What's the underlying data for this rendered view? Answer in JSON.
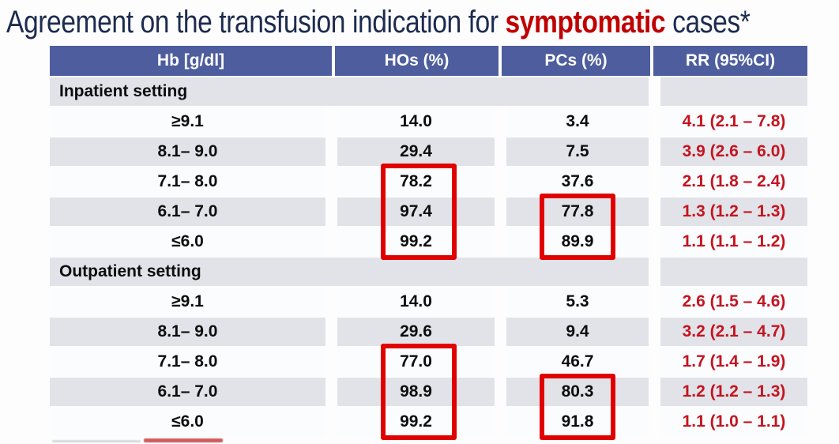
{
  "title": {
    "prefix": "Agreement on the transfusion indication for ",
    "highlight": "symptomatic",
    "suffix": " cases*"
  },
  "table": {
    "columns": [
      "Hb [g/dl]",
      "HOs (%)",
      "PCs (%)",
      "RR (95%CI)"
    ],
    "sections": [
      {
        "label": "Inpatient setting",
        "rows": [
          {
            "hb": "≥9.1",
            "hos": "14.0",
            "pcs": "3.4",
            "rr": "4.1 (2.1 – 7.8)",
            "hos_boxed": false,
            "pcs_boxed": false
          },
          {
            "hb": "8.1– 9.0",
            "hos": "29.4",
            "pcs": "7.5",
            "rr": "3.9 (2.6 – 6.0)",
            "hos_boxed": false,
            "pcs_boxed": false
          },
          {
            "hb": "7.1– 8.0",
            "hos": "78.2",
            "pcs": "37.6",
            "rr": "2.1 (1.8 – 2.4)",
            "hos_boxed": true,
            "pcs_boxed": false
          },
          {
            "hb": "6.1– 7.0",
            "hos": "97.4",
            "pcs": "77.8",
            "rr": "1.3 (1.2 – 1.3)",
            "hos_boxed": true,
            "pcs_boxed": true
          },
          {
            "hb": "≤6.0",
            "hos": "99.2",
            "pcs": "89.9",
            "rr": "1.1 (1.1 – 1.2)",
            "hos_boxed": true,
            "pcs_boxed": true
          }
        ]
      },
      {
        "label": "Outpatient setting",
        "rows": [
          {
            "hb": "≥9.1",
            "hos": "14.0",
            "pcs": "5.3",
            "rr": "2.6 (1.5 – 4.6)",
            "hos_boxed": false,
            "pcs_boxed": false
          },
          {
            "hb": "8.1– 9.0",
            "hos": "29.6",
            "pcs": "9.4",
            "rr": "3.2 (2.1 – 4.7)",
            "hos_boxed": false,
            "pcs_boxed": false
          },
          {
            "hb": "7.1– 8.0",
            "hos": "77.0",
            "pcs": "46.7",
            "rr": "1.7 (1.4 – 1.9)",
            "hos_boxed": true,
            "pcs_boxed": false
          },
          {
            "hb": "6.1– 7.0",
            "hos": "98.9",
            "pcs": "80.3",
            "rr": "1.2 (1.2 – 1.3)",
            "hos_boxed": true,
            "pcs_boxed": true
          },
          {
            "hb": "≤6.0",
            "hos": "99.2",
            "pcs": "91.8",
            "rr": "1.1 (1.0 – 1.1)",
            "hos_boxed": true,
            "pcs_boxed": true
          }
        ]
      }
    ]
  },
  "highlight_boxes": [
    {
      "section": "Inpatient setting",
      "column": "HOs (%)",
      "rows": [
        "7.1– 8.0",
        "6.1– 7.0",
        "≤6.0"
      ]
    },
    {
      "section": "Inpatient setting",
      "column": "PCs (%)",
      "rows": [
        "6.1– 7.0",
        "≤6.0"
      ]
    },
    {
      "section": "Outpatient setting",
      "column": "HOs (%)",
      "rows": [
        "7.1– 8.0",
        "6.1– 7.0",
        "≤6.0"
      ]
    },
    {
      "section": "Outpatient setting",
      "column": "PCs (%)",
      "rows": [
        "6.1– 7.0",
        "≤6.0"
      ]
    }
  ],
  "colors": {
    "header_bg": "#4d5d9d",
    "row_alt_bg": "#e1e3e8",
    "row_bg": "#fbfcfe",
    "rr_text_red": "#c41420",
    "title_highlight_red": "#c00000",
    "highlight_box_red": "#e10000",
    "title_color": "#1d2b4f"
  }
}
